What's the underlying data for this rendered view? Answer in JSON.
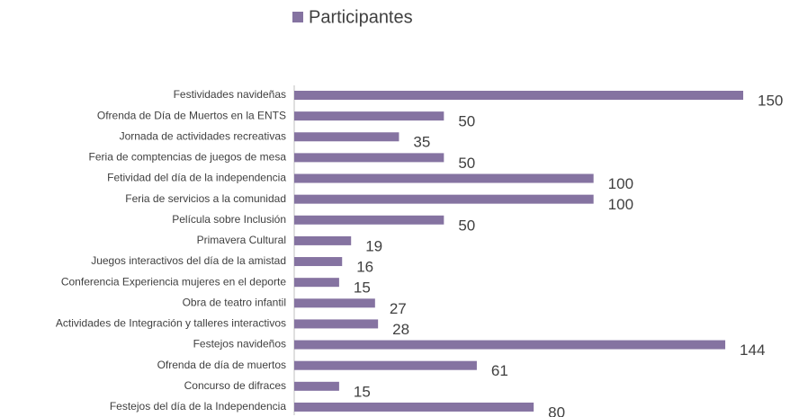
{
  "chart_data": {
    "type": "bar",
    "orientation": "horizontal",
    "legend": "top",
    "series": [
      {
        "name": "Participantes",
        "color": "#8573a1",
        "values": [
          150,
          50,
          35,
          50,
          100,
          100,
          50,
          19,
          16,
          15,
          27,
          28,
          144,
          61,
          15,
          80
        ]
      }
    ],
    "categories": [
      "Festividades navideñas",
      "Ofrenda de Día de Muertos en la ENTS",
      "Jornada de actividades recreativas",
      "Feria de comptencias de juegos de mesa",
      "Fetividad del día de la independencia",
      "Feria de servicios a la comunidad",
      "Película sobre Inclusión",
      "Primavera Cultural",
      "Juegos interactivos del día de la amistad",
      "Conferencia Experiencia mujeres en el deporte",
      "Obra de teatro infantil",
      "Actividades de Integración y talleres interactivos",
      "Festejos navideños",
      "Ofrenda de día de muertos",
      "Concurso de difraces",
      "Festejos del día de la Independencia"
    ]
  }
}
